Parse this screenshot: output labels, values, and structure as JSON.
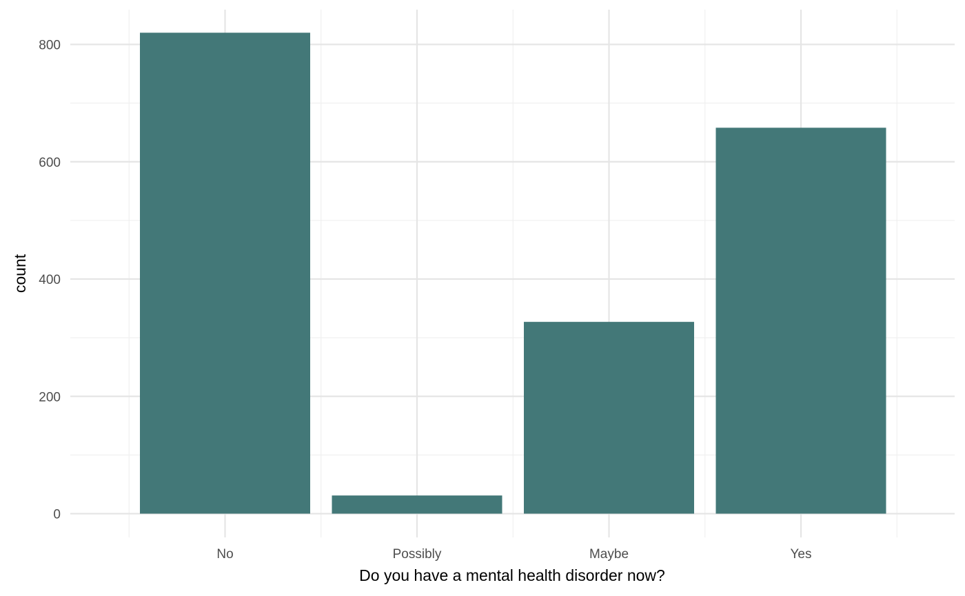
{
  "chart_data": {
    "type": "bar",
    "categories": [
      "No",
      "Possibly",
      "Maybe",
      "Yes"
    ],
    "values": [
      820,
      31,
      327,
      658
    ],
    "xlabel": "Do you have a mental health disorder now?",
    "ylabel": "count",
    "ylim": [
      0,
      850
    ],
    "y_ticks": [
      0,
      200,
      400,
      600,
      800
    ],
    "y_tick_labels": [
      "0",
      "200",
      "400",
      "600",
      "800"
    ],
    "grid": true,
    "legend": "none",
    "colors": {
      "bar": "#437878",
      "grid_major": "#e5e5e5",
      "grid_minor": "#f0f0f0",
      "tick_text": "#4d4d4d",
      "title_text": "#000000"
    }
  }
}
